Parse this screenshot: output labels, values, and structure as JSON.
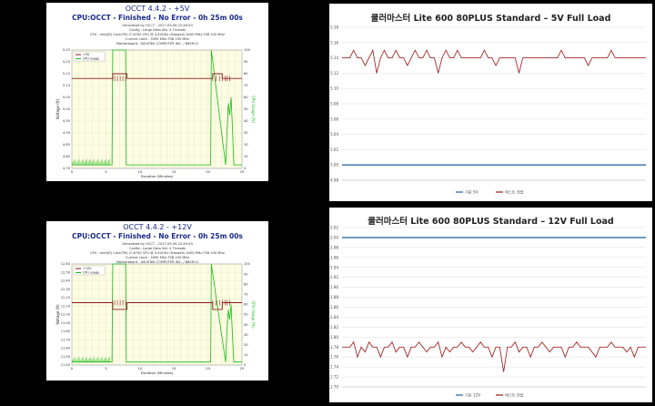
{
  "colors": {
    "occt_title": "#1a2a8a",
    "plot_bg": "#fdfde3",
    "occt_voltage": "#8b1a1a",
    "occt_cpu": "#16b816",
    "kr_reference": "#2e6da4",
    "kr_measured": "#a52a2a",
    "grid": "#dddddd"
  },
  "occt_5v": {
    "title": "OCCT 4.4.2 - +5V",
    "subtitle": "CPU:OCCT - Finished - No Error - 0h 25m 00s",
    "info": [
      "Generated by OCCT - 2017-09-08 22:49:43",
      "Config : Large Data Set, 4 Threads",
      "CPU : Intel(R) Core(TM) i7-6700 CPU @ 3.40GHz (Haswell) 3400 MHz FSB 100 MHz",
      "Current clock : 3399 MHz FSB 100 MHz",
      "Motherboard : ASUSTeK COMPUTER INC. / B85M-G"
    ],
    "legend": [
      "+5V",
      "CPU usage"
    ]
  },
  "occt_12v": {
    "title": "OCCT 4.4.2 - +12V",
    "subtitle": "CPU:OCCT - Finished - No Error - 0h 25m 00s",
    "info": [
      "Generated by OCCT - 2017-09-08 22:49:43",
      "Config : Large Data Set, 4 Threads",
      "CPU : Intel(R) Core(TM) i7-6700 CPU @ 3.40GHz (Haswell) 3400 MHz FSB 100 MHz",
      "Current clock : 3399 MHz FSB 100 MHz",
      "Motherboard : ASUSTeK COMPUTER INC. / B85M-G"
    ],
    "legend": [
      "+12V",
      "CPU usage"
    ]
  },
  "kr_5v": {
    "title": "쿨러마스터 Lite 600 80PLUS Standard  – 5V Full Load",
    "legend": [
      "기준 5V",
      "테스트 전압"
    ]
  },
  "kr_12v": {
    "title": "쿨러마스터 Lite 600 80PLUS Standard  – 12V Full Load",
    "legend": [
      "기준 12V",
      "테스트 전압"
    ]
  },
  "chart_data": [
    {
      "type": "line",
      "title": "OCCT 4.4.2 - +5V",
      "xlabel": "Duration (Minutes)",
      "ylabel": "Voltage (V)",
      "ylabel_right": "CPU Usage (%)",
      "xlim": [
        0,
        25
      ],
      "xticks": [
        0,
        5,
        10,
        15,
        20,
        25
      ],
      "ylim": [
        4.75,
        5.25
      ],
      "yticks": [
        4.75,
        4.8,
        4.85,
        4.9,
        4.95,
        5.0,
        5.05,
        5.1,
        5.15,
        5.2,
        5.25
      ],
      "y2lim": [
        0,
        100
      ],
      "y2ticks": [
        0,
        10,
        20,
        30,
        40,
        50,
        60,
        70,
        80,
        90,
        100
      ],
      "series": [
        {
          "name": "+5V",
          "x": [
            0,
            5.9,
            6.0,
            8.0,
            8.1,
            20.6,
            20.7,
            22.0,
            22.1,
            25
          ],
          "y": [
            5.13,
            5.13,
            5.15,
            5.15,
            5.13,
            5.13,
            5.15,
            5.15,
            5.13,
            5.13
          ]
        },
        {
          "name": "CPU usage",
          "x": [
            0,
            5.9,
            6.0,
            7.9,
            8.0,
            20.4,
            20.5,
            22.6,
            22.8,
            23.0,
            23.2,
            23.4,
            23.6,
            23.8,
            25
          ],
          "y": [
            3,
            3,
            100,
            100,
            3,
            3,
            100,
            3,
            30,
            55,
            45,
            60,
            35,
            3,
            3
          ]
        }
      ]
    },
    {
      "type": "line",
      "title": "쿨러마스터 Lite 600 80PLUS Standard  – 5V Full Load",
      "ylim": [
        4.98,
        5.18
      ],
      "yticks": [
        4.98,
        5.0,
        5.02,
        5.04,
        5.06,
        5.08,
        5.1,
        5.12,
        5.14,
        5.16,
        5.18
      ],
      "series": [
        {
          "name": "기준 5V",
          "values": [
            5.0
          ]
        },
        {
          "name": "테스트 전압",
          "values": [
            5.14,
            5.14,
            5.14,
            5.15,
            5.14,
            5.14,
            5.13,
            5.14,
            5.15,
            5.12,
            5.14,
            5.15,
            5.14,
            5.14,
            5.15,
            5.14,
            5.14,
            5.13,
            5.14,
            5.15,
            5.14,
            5.14,
            5.15,
            5.14,
            5.14,
            5.12,
            5.14,
            5.15,
            5.14,
            5.14,
            5.15,
            5.14,
            5.14,
            5.14,
            5.14,
            5.14,
            5.14,
            5.15,
            5.14,
            5.14,
            5.13,
            5.14,
            5.14,
            5.14,
            5.14,
            5.14,
            5.12,
            5.14,
            5.14,
            5.14,
            5.14,
            5.14,
            5.14,
            5.14,
            5.14,
            5.14,
            5.14,
            5.15,
            5.14,
            5.14,
            5.14,
            5.14,
            5.14,
            5.14,
            5.13,
            5.14,
            5.14,
            5.14,
            5.14,
            5.14,
            5.15,
            5.14,
            5.14,
            5.14,
            5.14,
            5.14,
            5.14,
            5.14,
            5.14,
            5.14
          ]
        }
      ]
    },
    {
      "type": "line",
      "title": "OCCT 4.4.2 - +12V",
      "xlabel": "Duration (Minutes)",
      "ylabel": "Voltage (V)",
      "ylabel_right": "CPU Usage (%)",
      "xlim": [
        0,
        25
      ],
      "xticks": [
        0,
        5,
        10,
        15,
        20,
        25
      ],
      "ylim": [
        11.4,
        12.6
      ],
      "yticks": [
        11.4,
        11.5,
        11.6,
        11.7,
        11.8,
        11.9,
        12.0,
        12.1,
        12.2,
        12.3,
        12.4,
        12.5,
        12.6
      ],
      "y2lim": [
        0,
        100
      ],
      "y2ticks": [
        0,
        10,
        20,
        30,
        40,
        50,
        60,
        70,
        80,
        90,
        100
      ],
      "series": [
        {
          "name": "+12V",
          "x": [
            0,
            5.9,
            6.0,
            8.0,
            8.1,
            20.6,
            20.7,
            22.0,
            22.1,
            25
          ],
          "y": [
            12.14,
            12.14,
            12.06,
            12.06,
            12.14,
            12.14,
            12.06,
            12.06,
            12.14,
            12.14
          ]
        },
        {
          "name": "CPU usage",
          "x": [
            0,
            5.9,
            6.0,
            7.9,
            8.0,
            20.4,
            20.5,
            22.6,
            22.8,
            23.0,
            23.2,
            23.4,
            23.6,
            23.8,
            25
          ],
          "y": [
            3,
            3,
            100,
            100,
            3,
            3,
            100,
            3,
            35,
            55,
            45,
            60,
            30,
            3,
            3
          ]
        }
      ]
    },
    {
      "type": "line",
      "title": "쿨러마스터 Lite 600 80PLUS Standard  – 12V Full Load",
      "ylim": [
        11.7,
        12.02
      ],
      "yticks": [
        11.7,
        11.72,
        11.74,
        11.76,
        11.78,
        11.8,
        11.82,
        11.84,
        11.86,
        11.88,
        11.9,
        11.92,
        11.94,
        11.96,
        11.98,
        12.0,
        12.02
      ],
      "series": [
        {
          "name": "기준 12V",
          "values": [
            12.0
          ]
        },
        {
          "name": "테스트 전압",
          "values": [
            11.78,
            11.78,
            11.78,
            11.79,
            11.76,
            11.78,
            11.77,
            11.79,
            11.78,
            11.78,
            11.76,
            11.78,
            11.78,
            11.79,
            11.77,
            11.78,
            11.78,
            11.76,
            11.78,
            11.78,
            11.79,
            11.78,
            11.77,
            11.78,
            11.78,
            11.79,
            11.76,
            11.78,
            11.77,
            11.78,
            11.78,
            11.79,
            11.78,
            11.78,
            11.77,
            11.78,
            11.79,
            11.78,
            11.78,
            11.76,
            11.78,
            11.78,
            11.73,
            11.78,
            11.78,
            11.79,
            11.77,
            11.78,
            11.78,
            11.76,
            11.78,
            11.78,
            11.79,
            11.78,
            11.77,
            11.78,
            11.78,
            11.78,
            11.76,
            11.78,
            11.78,
            11.79,
            11.78,
            11.78,
            11.78,
            11.77,
            11.76,
            11.78,
            11.78,
            11.78,
            11.79,
            11.78,
            11.78,
            11.78,
            11.77,
            11.78,
            11.76,
            11.78,
            11.78,
            11.78
          ]
        }
      ]
    }
  ]
}
